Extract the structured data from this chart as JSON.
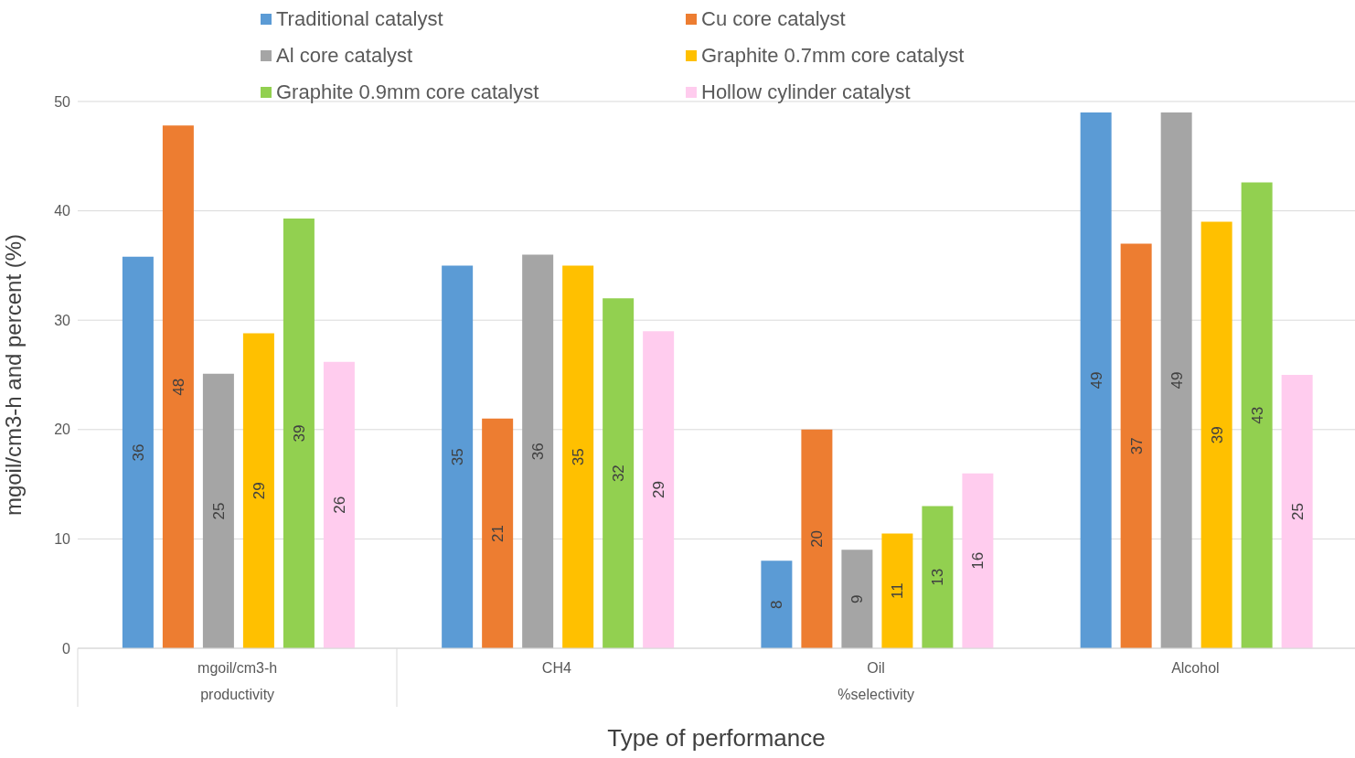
{
  "chart_data": {
    "type": "bar",
    "xlabel": "Type of performance",
    "ylabel": "mgoil/cm3-h and percent (%)",
    "categories": [
      "mgoil/cm3-h",
      "CH4",
      "Oil",
      "Alcohol"
    ],
    "annotations": [
      "productivity",
      "%selectivity"
    ],
    "series": [
      {
        "name": "Traditional catalyst",
        "color": "#5b9bd5",
        "values": [
          35.8,
          35,
          8,
          49
        ],
        "value_labels": [
          "36",
          "35",
          "8",
          "49"
        ]
      },
      {
        "name": "Cu core catalyst",
        "color": "#ed7d31",
        "values": [
          47.8,
          21,
          20,
          37
        ],
        "value_labels": [
          "48",
          "21",
          "20",
          "37"
        ]
      },
      {
        "name": "Al core catalyst",
        "color": "#a5a5a5",
        "values": [
          25.1,
          36,
          9,
          49
        ],
        "value_labels": [
          "25",
          "36",
          "9",
          "49"
        ]
      },
      {
        "name": "Graphite 0.7mm core catalyst",
        "color": "#ffc000",
        "values": [
          28.8,
          35,
          10.5,
          39
        ],
        "value_labels": [
          "29",
          "35",
          "11",
          "39"
        ]
      },
      {
        "name": "Graphite 0.9mm core catalyst",
        "color": "#92d050",
        "values": [
          39.3,
          32,
          13,
          42.6
        ],
        "value_labels": [
          "39",
          "32",
          "13",
          "43"
        ]
      },
      {
        "name": "Hollow cylinder catalyst",
        "color": "#ffccee",
        "values": [
          26.2,
          29,
          16,
          25
        ],
        "value_labels": [
          "26",
          "29",
          "16",
          "25"
        ]
      }
    ],
    "ylim": [
      0,
      50
    ],
    "yticks": [
      0,
      10,
      20,
      30,
      40,
      50
    ],
    "grid": "y",
    "legend": "top"
  }
}
